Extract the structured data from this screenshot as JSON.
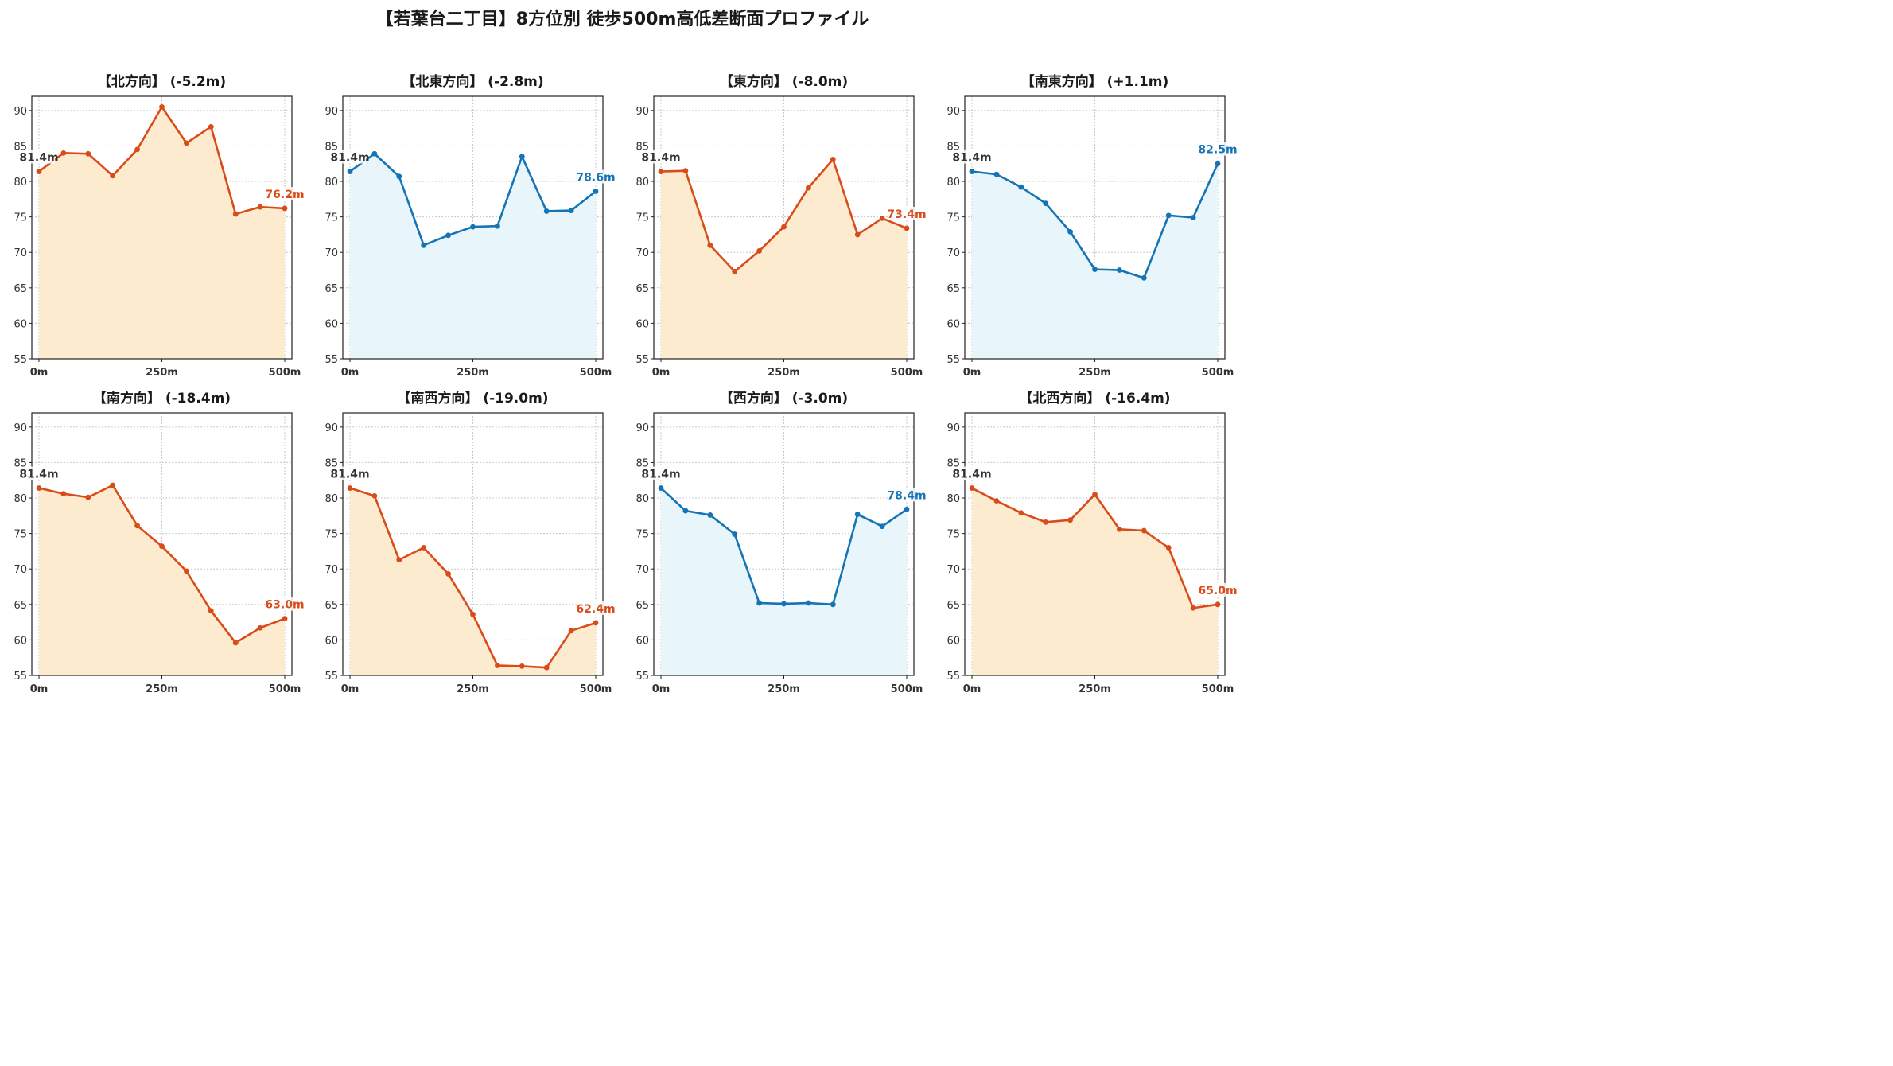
{
  "title": "【若葉台二丁目】8方位別 徒歩500m高低差断面プロファイル",
  "colors": {
    "down_line": "#d94c1a",
    "down_fill": "#fdebd0",
    "up_line": "#1574b5",
    "up_fill": "#e8f5fb",
    "start_label": "#333333",
    "grid": "#c8c8c8"
  },
  "chart_data": [
    {
      "type": "line",
      "title": "【北方向】 (-5.2m)",
      "x": [
        0,
        50,
        100,
        150,
        200,
        250,
        300,
        350,
        400,
        450,
        500
      ],
      "y": [
        81.4,
        84.0,
        83.9,
        80.8,
        84.5,
        90.5,
        85.4,
        87.7,
        75.4,
        76.4,
        76.2
      ],
      "start_label": "81.4m",
      "end_label": "76.2m",
      "trend": "down",
      "ylim": [
        55,
        92
      ],
      "yticks": [
        55,
        60,
        65,
        70,
        75,
        80,
        85,
        90
      ],
      "xticks": [
        "0m",
        "250m",
        "500m"
      ],
      "grid": true
    },
    {
      "type": "line",
      "title": "【北東方向】 (-2.8m)",
      "x": [
        0,
        50,
        100,
        150,
        200,
        250,
        300,
        350,
        400,
        450,
        500
      ],
      "y": [
        81.4,
        83.9,
        80.7,
        71.0,
        72.4,
        73.6,
        73.7,
        83.5,
        75.8,
        75.9,
        78.6
      ],
      "start_label": "81.4m",
      "end_label": "78.6m",
      "trend": "up",
      "ylim": [
        55,
        92
      ],
      "yticks": [
        55,
        60,
        65,
        70,
        75,
        80,
        85,
        90
      ],
      "xticks": [
        "0m",
        "250m",
        "500m"
      ],
      "grid": true
    },
    {
      "type": "line",
      "title": "【東方向】 (-8.0m)",
      "x": [
        0,
        50,
        100,
        150,
        200,
        250,
        300,
        350,
        400,
        450,
        500
      ],
      "y": [
        81.4,
        81.5,
        71.0,
        67.3,
        70.2,
        73.6,
        79.1,
        83.1,
        72.5,
        74.8,
        73.4
      ],
      "start_label": "81.4m",
      "end_label": "73.4m",
      "trend": "down",
      "ylim": [
        55,
        92
      ],
      "yticks": [
        55,
        60,
        65,
        70,
        75,
        80,
        85,
        90
      ],
      "xticks": [
        "0m",
        "250m",
        "500m"
      ],
      "grid": true
    },
    {
      "type": "line",
      "title": "【南東方向】 (+1.1m)",
      "x": [
        0,
        50,
        100,
        150,
        200,
        250,
        300,
        350,
        400,
        450,
        500
      ],
      "y": [
        81.4,
        81.0,
        79.2,
        76.9,
        72.9,
        67.6,
        67.5,
        66.4,
        75.2,
        74.9,
        82.5
      ],
      "start_label": "81.4m",
      "end_label": "82.5m",
      "trend": "up",
      "ylim": [
        55,
        92
      ],
      "yticks": [
        55,
        60,
        65,
        70,
        75,
        80,
        85,
        90
      ],
      "xticks": [
        "0m",
        "250m",
        "500m"
      ],
      "grid": true
    },
    {
      "type": "line",
      "title": "【南方向】 (-18.4m)",
      "x": [
        0,
        50,
        100,
        150,
        200,
        250,
        300,
        350,
        400,
        450,
        500
      ],
      "y": [
        81.4,
        80.6,
        80.1,
        81.8,
        76.1,
        73.2,
        69.7,
        64.1,
        59.6,
        61.7,
        63.0
      ],
      "start_label": "81.4m",
      "end_label": "63.0m",
      "trend": "down",
      "ylim": [
        55,
        92
      ],
      "yticks": [
        55,
        60,
        65,
        70,
        75,
        80,
        85,
        90
      ],
      "xticks": [
        "0m",
        "250m",
        "500m"
      ],
      "grid": true
    },
    {
      "type": "line",
      "title": "【南西方向】 (-19.0m)",
      "x": [
        0,
        50,
        100,
        150,
        200,
        250,
        300,
        350,
        400,
        450,
        500
      ],
      "y": [
        81.4,
        80.3,
        71.3,
        73.0,
        69.3,
        63.6,
        56.4,
        56.3,
        56.1,
        61.3,
        62.4
      ],
      "start_label": "81.4m",
      "end_label": "62.4m",
      "trend": "down",
      "ylim": [
        55,
        92
      ],
      "yticks": [
        55,
        60,
        65,
        70,
        75,
        80,
        85,
        90
      ],
      "xticks": [
        "0m",
        "250m",
        "500m"
      ],
      "grid": true
    },
    {
      "type": "line",
      "title": "【西方向】 (-3.0m)",
      "x": [
        0,
        50,
        100,
        150,
        200,
        250,
        300,
        350,
        400,
        450,
        500
      ],
      "y": [
        81.4,
        78.2,
        77.6,
        74.9,
        65.2,
        65.1,
        65.2,
        65.0,
        77.7,
        76.0,
        78.4
      ],
      "start_label": "81.4m",
      "end_label": "78.4m",
      "trend": "up",
      "ylim": [
        55,
        92
      ],
      "yticks": [
        55,
        60,
        65,
        70,
        75,
        80,
        85,
        90
      ],
      "xticks": [
        "0m",
        "250m",
        "500m"
      ],
      "grid": true
    },
    {
      "type": "line",
      "title": "【北西方向】 (-16.4m)",
      "x": [
        0,
        50,
        100,
        150,
        200,
        250,
        300,
        350,
        400,
        450,
        500
      ],
      "y": [
        81.4,
        79.6,
        77.9,
        76.6,
        76.9,
        80.5,
        75.6,
        75.4,
        73.0,
        64.5,
        65.0
      ],
      "start_label": "81.4m",
      "end_label": "65.0m",
      "trend": "down",
      "ylim": [
        55,
        92
      ],
      "yticks": [
        55,
        60,
        65,
        70,
        75,
        80,
        85,
        90
      ],
      "xticks": [
        "0m",
        "250m",
        "500m"
      ],
      "grid": true
    }
  ]
}
